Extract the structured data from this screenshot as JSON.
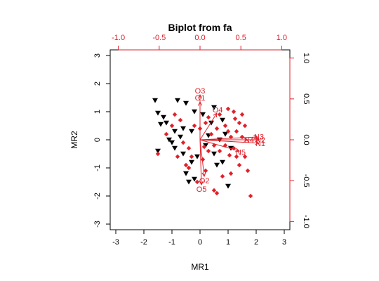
{
  "chart_data": {
    "type": "scatter",
    "title": "Biplot from fa",
    "xlabel": "MR1",
    "ylabel": "MR2",
    "xlim": [
      -3.2,
      3.2
    ],
    "ylim": [
      -3.2,
      3.2
    ],
    "x_ticks": [
      -3,
      -2,
      -1,
      0,
      1,
      2,
      3
    ],
    "y_ticks": [
      -3,
      -2,
      -1,
      0,
      1,
      2,
      3
    ],
    "loading_axis_range": [
      -1.1,
      1.1
    ],
    "loading_ticks": [
      -1.0,
      -0.5,
      0.0,
      0.5,
      1.0
    ],
    "loading_tick_labels": [
      "-1.0",
      "-0.5",
      "0.0",
      "0.5",
      "1.0"
    ],
    "colors": {
      "group_a": "#000000",
      "group_b": "#e0202a",
      "loadings": "#e0202a"
    },
    "series": [
      {
        "marker": "triangle-down",
        "color": "#000000",
        "points": [
          [
            -1.6,
            1.4
          ],
          [
            -1.5,
            0.95
          ],
          [
            -1.3,
            0.8
          ],
          [
            -1.2,
            0.6
          ],
          [
            -0.9,
            0.3
          ],
          [
            -1.1,
            0.0
          ],
          [
            -1.5,
            -0.4
          ],
          [
            -1.0,
            -0.1
          ],
          [
            -0.8,
            1.4
          ],
          [
            -0.5,
            1.3
          ],
          [
            -0.2,
            1.0
          ],
          [
            0.5,
            1.15
          ],
          [
            0.8,
            0.7
          ],
          [
            0.4,
            0.6
          ],
          [
            -0.6,
            0.4
          ],
          [
            -0.3,
            0.3
          ],
          [
            -0.6,
            -0.5
          ],
          [
            -0.5,
            -1.2
          ],
          [
            -0.4,
            -1.5
          ],
          [
            -0.2,
            -1.4
          ],
          [
            0.2,
            -0.2
          ],
          [
            0.5,
            -0.5
          ],
          [
            0.8,
            -0.8
          ],
          [
            0.6,
            -0.9
          ],
          [
            1.0,
            -1.65
          ],
          [
            1.1,
            -0.3
          ],
          [
            -0.9,
            -0.3
          ],
          [
            0.3,
            0.15
          ],
          [
            -1.4,
            0.55
          ],
          [
            -0.7,
            0.1
          ],
          [
            0.1,
            0.9
          ],
          [
            0.9,
            0.2
          ],
          [
            -0.3,
            -0.8
          ],
          [
            -0.1,
            -0.6
          ],
          [
            0.7,
            0.0
          ]
        ]
      },
      {
        "marker": "diamond",
        "color": "#e0202a",
        "points": [
          [
            -1.5,
            -0.5
          ],
          [
            -1.2,
            0.2
          ],
          [
            -0.9,
            0.9
          ],
          [
            -0.7,
            0.7
          ],
          [
            -0.6,
            -0.1
          ],
          [
            -0.4,
            -0.3
          ],
          [
            -0.3,
            -0.6
          ],
          [
            -0.5,
            -0.9
          ],
          [
            -0.4,
            -1.0
          ],
          [
            -0.1,
            -1.5
          ],
          [
            0.1,
            -0.7
          ],
          [
            0.2,
            -1.1
          ],
          [
            0.3,
            -0.4
          ],
          [
            0.5,
            -0.2
          ],
          [
            0.6,
            0.4
          ],
          [
            0.7,
            0.9
          ],
          [
            0.9,
            0.5
          ],
          [
            1.0,
            0.3
          ],
          [
            1.1,
            0.1
          ],
          [
            1.2,
            -0.3
          ],
          [
            1.3,
            -0.6
          ],
          [
            1.4,
            -0.9
          ],
          [
            1.6,
            -0.6
          ],
          [
            1.7,
            -1.1
          ],
          [
            1.8,
            -2.0
          ],
          [
            1.6,
            0.5
          ],
          [
            1.4,
            0.6
          ],
          [
            1.2,
            1.0
          ],
          [
            1.5,
            0.1
          ],
          [
            1.1,
            -1.2
          ],
          [
            0.8,
            -1.3
          ],
          [
            0.5,
            -1.8
          ],
          [
            0.6,
            -1.9
          ],
          [
            0.3,
            0.8
          ],
          [
            0.0,
            0.4
          ],
          [
            0.4,
            0.2
          ],
          [
            0.9,
            -0.2
          ],
          [
            0.7,
            -0.4
          ],
          [
            1.0,
            1.1
          ],
          [
            1.3,
            0.3
          ],
          [
            -0.2,
            0.5
          ],
          [
            -0.8,
            -0.6
          ],
          [
            0.2,
            0.6
          ],
          [
            1.5,
            0.9
          ],
          [
            1.25,
            0.75
          ],
          [
            -1.0,
            0.5
          ],
          [
            0.15,
            -0.25
          ],
          [
            1.05,
            -0.55
          ]
        ]
      }
    ],
    "loadings": [
      {
        "label": "O3",
        "x": 0.0,
        "y": 1.6
      },
      {
        "label": "O1",
        "x": 0.0,
        "y": 1.35
      },
      {
        "label": "O4",
        "x": 0.6,
        "y": 0.95
      },
      {
        "label": "N3",
        "x": 2.05,
        "y": 0.1
      },
      {
        "label": "N2",
        "x": 2.1,
        "y": 0.0
      },
      {
        "label": "N4",
        "x": 1.7,
        "y": 0.0
      },
      {
        "label": "N1",
        "x": 2.1,
        "y": -0.12
      },
      {
        "label": "N5",
        "x": 1.4,
        "y": -0.4
      },
      {
        "label": "O2",
        "x": 0.15,
        "y": -1.3
      },
      {
        "label": "O5",
        "x": 0.05,
        "y": -1.6
      }
    ]
  }
}
